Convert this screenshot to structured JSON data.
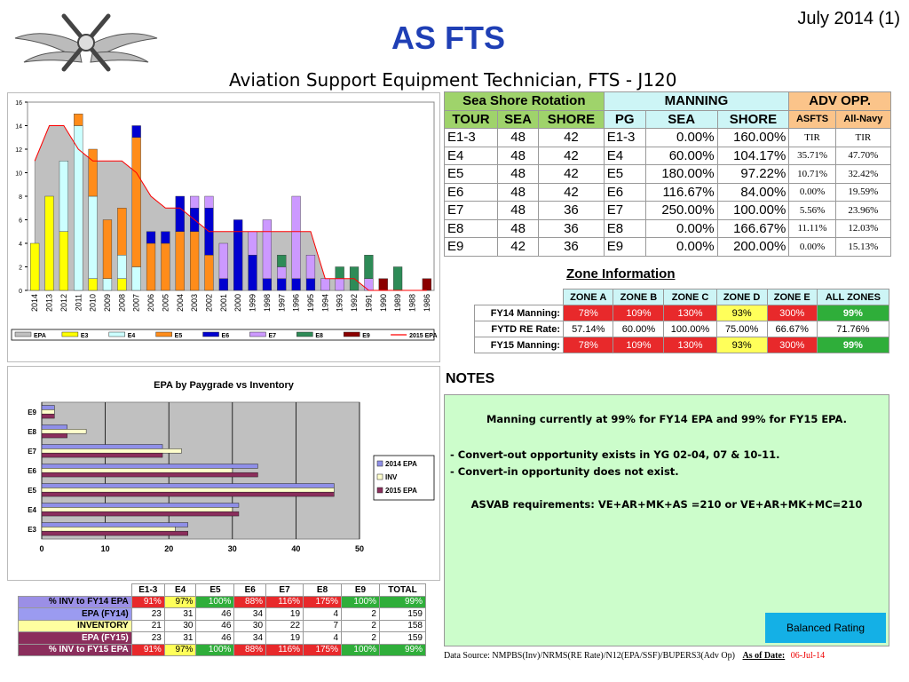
{
  "page": {
    "title": "AS FTS",
    "date_label": "July 2014 (1)",
    "subtitle": "Aviation Support Equipment Technician, FTS - J120"
  },
  "colors": {
    "title": "#1f3fb5",
    "EPA": "#c0c0c0",
    "E3": "#ffff00",
    "E4": "#ccffff",
    "E5": "#ff8c1a",
    "E6": "#0000d0",
    "E7": "#cc99ff",
    "E8": "#2e8b57",
    "E9": "#8b0000",
    "EPA_2015": "#ff0000",
    "notes_bg": "#ccfdcb",
    "balanced_bg": "#14b0e6"
  },
  "chart_data": [
    {
      "type": "bar",
      "subtype": "stacked-by-year-with-area",
      "title": "",
      "categories": [
        "2014",
        "2013",
        "2012",
        "2011",
        "2010",
        "2009",
        "2008",
        "2007",
        "2006",
        "2005",
        "2004",
        "2003",
        "2002",
        "2001",
        "2000",
        "1999",
        "1998",
        "1997",
        "1996",
        "1995",
        "1994",
        "1993",
        "1992",
        "1991",
        "1990",
        "1989",
        "1988",
        "1986"
      ],
      "ylim": [
        0,
        16
      ],
      "yticks": [
        0,
        2,
        4,
        6,
        8,
        10,
        12,
        14,
        16
      ],
      "series": [
        {
          "name": "EPA",
          "kind": "area",
          "values": [
            11,
            14,
            14,
            12,
            11,
            11,
            11,
            10,
            8,
            7,
            7,
            6,
            5,
            5,
            5,
            5,
            5,
            5,
            5,
            5,
            1,
            1,
            1,
            0,
            0,
            0,
            0,
            0
          ]
        },
        {
          "name": "E3",
          "values": [
            4,
            8,
            5,
            0,
            1,
            0,
            1,
            0,
            0,
            0,
            0,
            0,
            0,
            0,
            0,
            0,
            0,
            0,
            0,
            0,
            0,
            0,
            0,
            0,
            0,
            0,
            0,
            0
          ]
        },
        {
          "name": "E4",
          "values": [
            0,
            0,
            6,
            14,
            7,
            1,
            2,
            2,
            0,
            0,
            0,
            0,
            0,
            0,
            0,
            0,
            0,
            0,
            0,
            0,
            0,
            0,
            0,
            0,
            0,
            0,
            0,
            0
          ]
        },
        {
          "name": "E5",
          "values": [
            0,
            0,
            0,
            1,
            4,
            5,
            4,
            11,
            4,
            4,
            5,
            5,
            3,
            0,
            0,
            0,
            0,
            0,
            0,
            0,
            0,
            0,
            0,
            0,
            0,
            0,
            0,
            0
          ]
        },
        {
          "name": "E6",
          "values": [
            0,
            0,
            0,
            0,
            0,
            0,
            0,
            1,
            1,
            1,
            3,
            2,
            4,
            1,
            6,
            3,
            1,
            1,
            1,
            1,
            0,
            0,
            0,
            0,
            0,
            0,
            0,
            0
          ]
        },
        {
          "name": "E7",
          "values": [
            0,
            0,
            0,
            0,
            0,
            0,
            0,
            0,
            0,
            0,
            0,
            1,
            1,
            3,
            0,
            2,
            5,
            1,
            7,
            2,
            1,
            1,
            0,
            1,
            0,
            0,
            0,
            0
          ]
        },
        {
          "name": "E8",
          "values": [
            0,
            0,
            0,
            0,
            0,
            0,
            0,
            0,
            0,
            0,
            0,
            0,
            0,
            0,
            0,
            0,
            0,
            1,
            0,
            0,
            0,
            1,
            2,
            2,
            0,
            2,
            0,
            0
          ]
        },
        {
          "name": "E9",
          "values": [
            0,
            0,
            0,
            0,
            0,
            0,
            0,
            0,
            0,
            0,
            0,
            0,
            0,
            0,
            0,
            0,
            0,
            0,
            0,
            0,
            0,
            0,
            0,
            0,
            1,
            0,
            0,
            1
          ]
        },
        {
          "name": "2015 EPA",
          "kind": "line",
          "values": [
            11,
            14,
            14,
            12,
            11,
            11,
            11,
            10,
            8,
            7,
            7,
            6,
            5,
            5,
            5,
            5,
            5,
            5,
            5,
            5,
            1,
            1,
            1,
            0,
            0,
            0,
            0,
            0
          ]
        }
      ],
      "legend": [
        "EPA",
        "E3",
        "E4",
        "E5",
        "E6",
        "E7",
        "E8",
        "E9",
        "2015 EPA"
      ],
      "legend_position": "bottom"
    },
    {
      "type": "bar",
      "subtype": "horizontal-grouped",
      "title": "EPA by Paygrade vs Inventory",
      "categories": [
        "E9",
        "E8",
        "E7",
        "E6",
        "E5",
        "E4",
        "E3"
      ],
      "xlim": [
        0,
        50
      ],
      "xticks": [
        0,
        10,
        20,
        30,
        40,
        50
      ],
      "series": [
        {
          "name": "2014 EPA",
          "values": [
            2,
            4,
            19,
            34,
            46,
            31,
            23
          ]
        },
        {
          "name": "INV",
          "values": [
            2,
            7,
            22,
            30,
            46,
            30,
            21
          ]
        },
        {
          "name": "2015 EPA",
          "values": [
            2,
            4,
            19,
            34,
            46,
            31,
            23
          ]
        }
      ],
      "legend_position": "right"
    }
  ],
  "rotation": {
    "group_headers": [
      "Sea Shore Rotation",
      "MANNING",
      "ADV OPP."
    ],
    "col_headers": [
      "TOUR",
      "SEA",
      "SHORE",
      "PG",
      "SEA",
      "SHORE",
      "ASFTS",
      "All-Navy"
    ],
    "rows": [
      [
        "E1-3",
        "48",
        "42",
        "E1-3",
        "0.00%",
        "160.00%",
        "TIR",
        "TIR"
      ],
      [
        "E4",
        "48",
        "42",
        "E4",
        "60.00%",
        "104.17%",
        "35.71%",
        "47.70%"
      ],
      [
        "E5",
        "48",
        "42",
        "E5",
        "180.00%",
        "97.22%",
        "10.71%",
        "32.42%"
      ],
      [
        "E6",
        "48",
        "42",
        "E6",
        "116.67%",
        "84.00%",
        "0.00%",
        "19.59%"
      ],
      [
        "E7",
        "48",
        "36",
        "E7",
        "250.00%",
        "100.00%",
        "5.56%",
        "23.96%"
      ],
      [
        "E8",
        "48",
        "36",
        "E8",
        "0.00%",
        "166.67%",
        "11.11%",
        "12.03%"
      ],
      [
        "E9",
        "42",
        "36",
        "E9",
        "0.00%",
        "200.00%",
        "0.00%",
        "15.13%"
      ]
    ]
  },
  "zones": {
    "title": "Zone Information",
    "headers": [
      "ZONE A",
      "ZONE B",
      "ZONE C",
      "ZONE D",
      "ZONE E",
      "ALL ZONES"
    ],
    "rows": [
      {
        "label": "FY14 Manning:",
        "values": [
          "78%",
          "109%",
          "130%",
          "93%",
          "300%",
          "99%"
        ]
      },
      {
        "label": "FYTD RE Rate:",
        "values": [
          "57.14%",
          "60.00%",
          "100.00%",
          "75.00%",
          "66.67%",
          "71.76%"
        ]
      },
      {
        "label": "FY15 Manning:",
        "values": [
          "78%",
          "109%",
          "130%",
          "93%",
          "300%",
          "99%"
        ]
      }
    ]
  },
  "inventory": {
    "headers": [
      "E1-3",
      "E4",
      "E5",
      "E6",
      "E7",
      "E8",
      "E9",
      "TOTAL"
    ],
    "rows": [
      {
        "label": "% INV to FY14 EPA",
        "values": [
          "91%",
          "97%",
          "100%",
          "88%",
          "116%",
          "175%",
          "100%",
          "99%"
        ]
      },
      {
        "label": "EPA (FY14)",
        "values": [
          "23",
          "31",
          "46",
          "34",
          "19",
          "4",
          "2",
          "159"
        ]
      },
      {
        "label": "INVENTORY",
        "values": [
          "21",
          "30",
          "46",
          "30",
          "22",
          "7",
          "2",
          "158"
        ]
      },
      {
        "label": "EPA (FY15)",
        "values": [
          "23",
          "31",
          "46",
          "34",
          "19",
          "4",
          "2",
          "159"
        ]
      },
      {
        "label": "% INV to FY15 EPA",
        "values": [
          "91%",
          "97%",
          "100%",
          "88%",
          "116%",
          "175%",
          "100%",
          "99%"
        ]
      }
    ]
  },
  "notes": {
    "heading": "NOTES",
    "line1": "Manning currently at 99% for FY14 EPA and 99% for FY15 EPA.",
    "line2": "- Convert-out opportunity exists in YG 02-04, 07 & 10-11.",
    "line3": "- Convert-in opportunity  does not exist.",
    "line4": "ASVAB requirements: VE+AR+MK+AS =210 or VE+AR+MK+MC=210",
    "rating": "Balanced Rating"
  },
  "footer": {
    "source": "Data Source: NMPBS(Inv)/NRMS(RE Rate)/N12(EPA/SSF)/BUPERS3(Adv Op)",
    "asof_label": "As of Date:",
    "asof_value": "06-Jul-14"
  }
}
